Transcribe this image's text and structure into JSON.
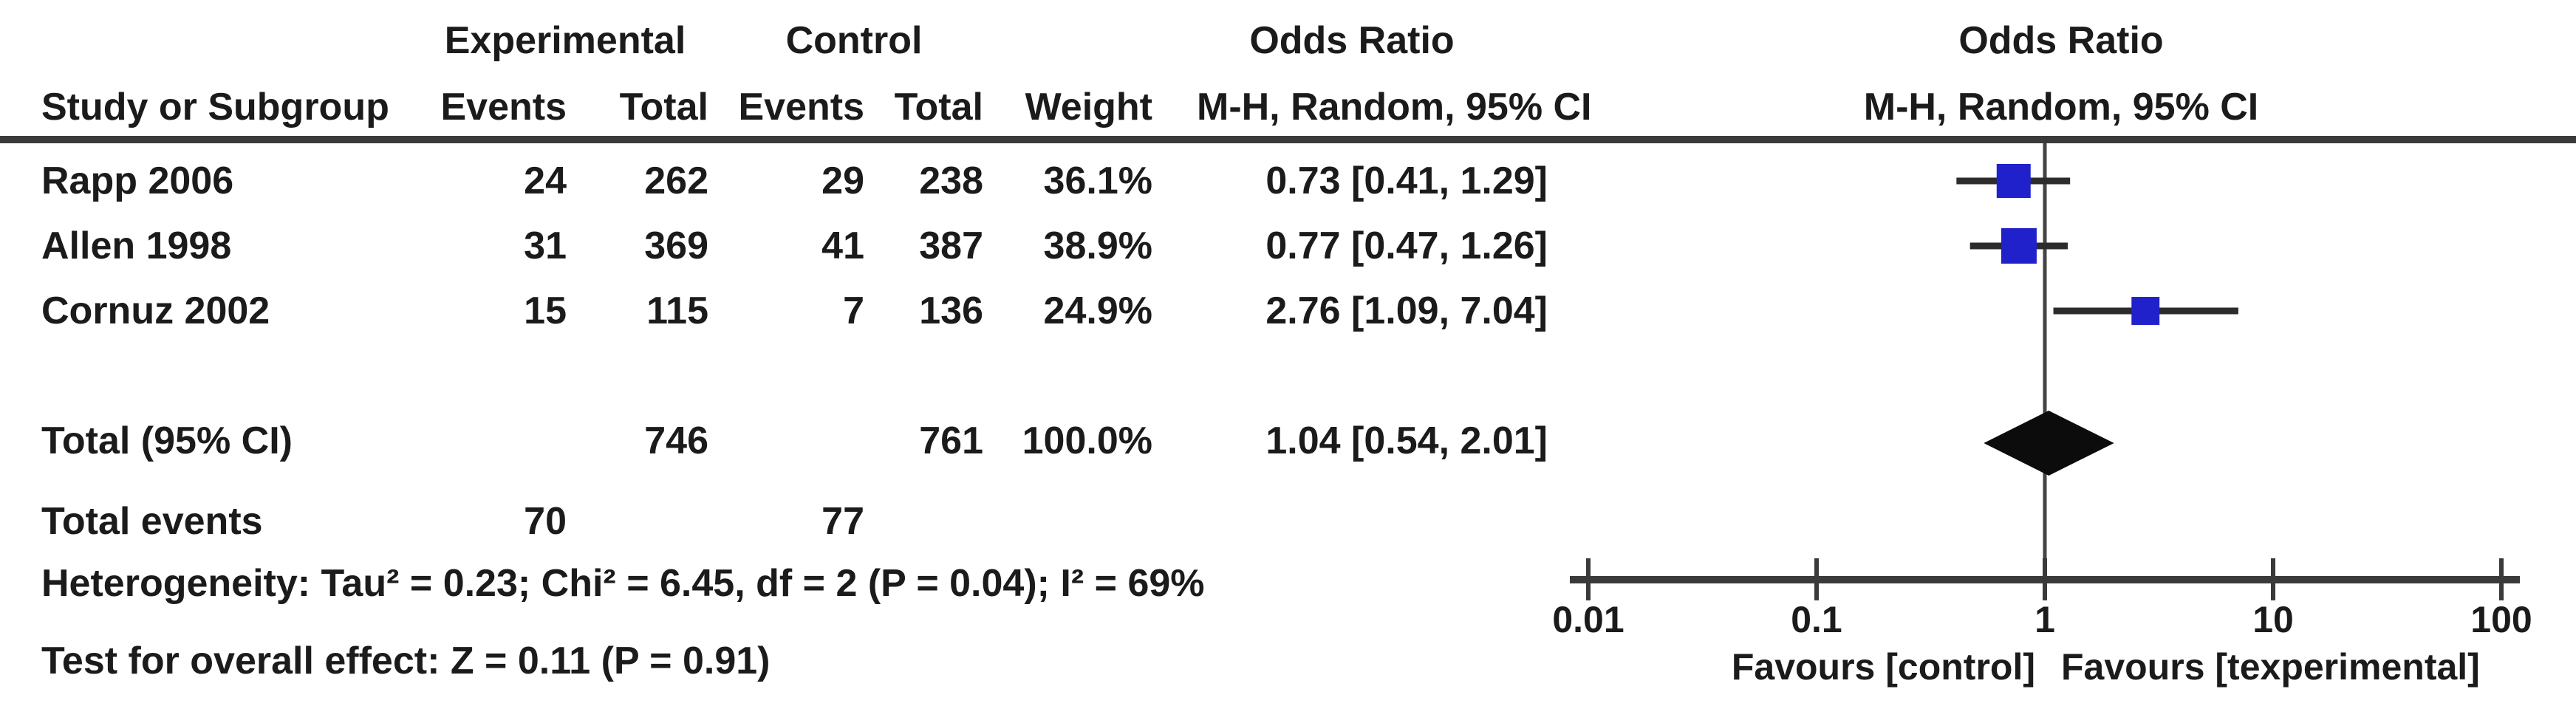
{
  "table": {
    "group_headers": {
      "experimental": "Experimental",
      "control": "Control",
      "odds_ratio": "Odds Ratio"
    },
    "column_headers": {
      "study": "Study or Subgroup",
      "exp_events": "Events",
      "exp_total": "Total",
      "ctl_events": "Events",
      "ctl_total": "Total",
      "weight": "Weight",
      "ci": "M-H, Random, 95% CI"
    },
    "rows": [
      {
        "study": "Rapp 2006",
        "exp_events": "24",
        "exp_total": "262",
        "ctl_events": "29",
        "ctl_total": "238",
        "weight": "36.1%",
        "ci_text": "0.73 [0.41, 1.29]"
      },
      {
        "study": "Allen 1998",
        "exp_events": "31",
        "exp_total": "369",
        "ctl_events": "41",
        "ctl_total": "387",
        "weight": "38.9%",
        "ci_text": "0.77 [0.47, 1.26]"
      },
      {
        "study": "Cornuz 2002",
        "exp_events": "15",
        "exp_total": "115",
        "ctl_events": "7",
        "ctl_total": "136",
        "weight": "24.9%",
        "ci_text": "2.76 [1.09, 7.04]"
      }
    ],
    "total_row": {
      "label": "Total (95% CI)",
      "exp_total": "746",
      "ctl_total": "761",
      "weight": "100.0%",
      "ci_text": "1.04 [0.54, 2.01]"
    },
    "total_events_row": {
      "label": "Total events",
      "exp_events": "70",
      "ctl_events": "77"
    },
    "heterogeneity": "Heterogeneity: Tau² = 0.23; Chi² = 6.45, df = 2 (P = 0.04); I² = 69%",
    "overall_effect": "Test for overall effect: Z = 0.11 (P = 0.91)"
  },
  "plot": {
    "header_line1": "Odds Ratio",
    "header_line2": "M-H, Random, 95% CI",
    "favours_left": "Favours [control]",
    "favours_right": "Favours [texperimental]",
    "colors": {
      "square": "#2121cc",
      "diamond": "#0c0c0c",
      "line": "#3a3a3a",
      "whisker": "#2c2c2c",
      "text": "#1b1b1b"
    }
  },
  "chart_data": {
    "type": "forest",
    "effect_measure": "Odds Ratio",
    "method": "M-H, Random, 95% CI",
    "scale": "log10",
    "axis_ticks": [
      0.01,
      0.1,
      1,
      10,
      100
    ],
    "axis_range": [
      0.01,
      100
    ],
    "no_effect_value": 1,
    "studies": [
      {
        "name": "Rapp 2006",
        "or": 0.73,
        "ci_low": 0.41,
        "ci_high": 1.29,
        "weight_pct": 36.1
      },
      {
        "name": "Allen 1998",
        "or": 0.77,
        "ci_low": 0.47,
        "ci_high": 1.26,
        "weight_pct": 38.9
      },
      {
        "name": "Cornuz 2002",
        "or": 2.76,
        "ci_low": 1.09,
        "ci_high": 7.04,
        "weight_pct": 24.9
      }
    ],
    "total": {
      "or": 1.04,
      "ci_low": 0.54,
      "ci_high": 2.01,
      "weight_pct": 100.0
    },
    "heterogeneity": {
      "tau2": 0.23,
      "chi2": 6.45,
      "df": 2,
      "p": 0.04,
      "i2_pct": 69
    },
    "overall_effect": {
      "z": 0.11,
      "p": 0.91
    }
  }
}
